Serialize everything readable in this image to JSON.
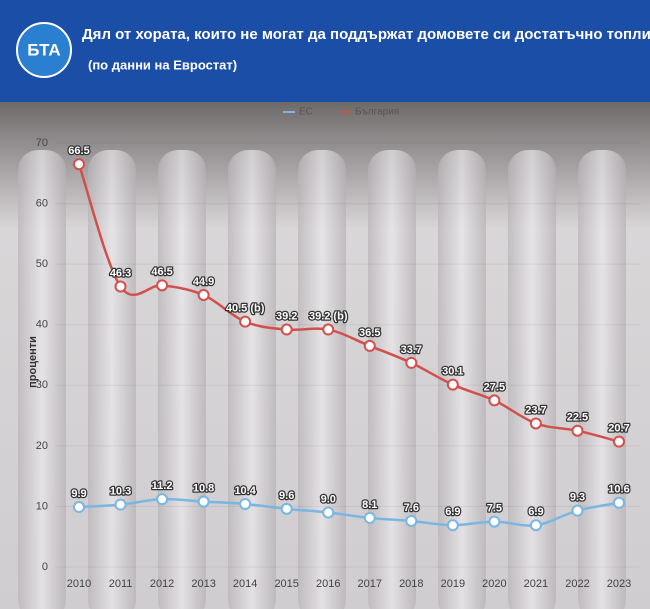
{
  "header": {
    "logo": "БТА",
    "title": "Дял от хората, които не могат да поддържат домовете си достатъчно топли",
    "subtitle": "(по данни на Евростат)"
  },
  "chart_data": {
    "type": "line",
    "y_label": "проценти",
    "categories": [
      "2010",
      "2011",
      "2012",
      "2013",
      "2014",
      "2015",
      "2016",
      "2017",
      "2018",
      "2019",
      "2020",
      "2021",
      "2022",
      "2023"
    ],
    "ylim": [
      0,
      70
    ],
    "yticks": [
      0,
      10,
      20,
      30,
      40,
      50,
      60,
      70
    ],
    "series": [
      {
        "name": "ЕС",
        "color": "#7ab6e2",
        "values": [
          9.9,
          10.3,
          11.2,
          10.8,
          10.4,
          9.6,
          9.0,
          8.1,
          7.6,
          6.9,
          7.5,
          6.9,
          9.3,
          10.6
        ],
        "value_labels": [
          "9.9",
          "10.3",
          "11.2",
          "10.8",
          "10.4",
          "9.6",
          "9.0",
          "8.1",
          "7.6",
          "6.9",
          "7.5",
          "6.9",
          "9.3",
          "10.6"
        ]
      },
      {
        "name": "България",
        "color": "#d2504c",
        "values": [
          66.5,
          46.3,
          46.5,
          44.9,
          40.5,
          39.2,
          39.2,
          36.5,
          33.7,
          30.1,
          27.5,
          23.7,
          22.5,
          20.7
        ],
        "value_labels": [
          "66.5",
          "46.3",
          "46.5",
          "44.9",
          "40.5 (b)",
          "39.2",
          "39.2 (b)",
          "36.5",
          "33.7",
          "30.1",
          "27.5",
          "23.7",
          "22.5",
          "20.7"
        ]
      }
    ]
  }
}
